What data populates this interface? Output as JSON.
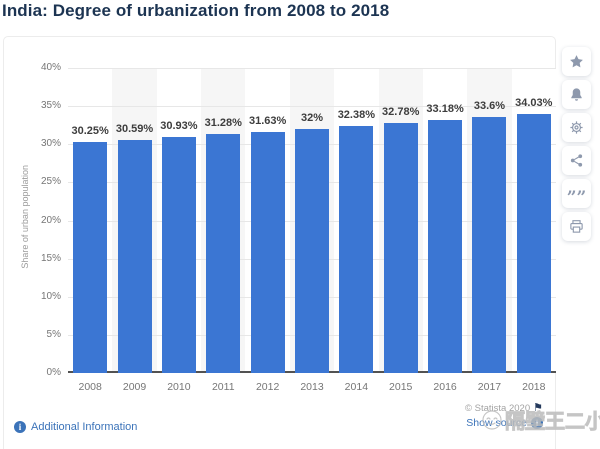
{
  "header": {
    "title": "India: Degree of urbanization from 2008 to 2018"
  },
  "chart_data": {
    "type": "bar",
    "title": "India: Degree of urbanization from 2008 to 2018",
    "categories": [
      "2008",
      "2009",
      "2010",
      "2011",
      "2012",
      "2013",
      "2014",
      "2015",
      "2016",
      "2017",
      "2018"
    ],
    "values": [
      30.25,
      30.59,
      30.93,
      31.28,
      31.63,
      32,
      32.38,
      32.78,
      33.18,
      33.6,
      34.03
    ],
    "value_labels": [
      "30.25%",
      "30.59%",
      "30.93%",
      "31.28%",
      "31.63%",
      "32%",
      "32.38%",
      "32.78%",
      "33.18%",
      "33.6%",
      "34.03%"
    ],
    "xlabel": "",
    "ylabel": "Share of urban population",
    "ylim": [
      0,
      40
    ],
    "ytick_step": 5,
    "ytick_labels": [
      "0%",
      "5%",
      "10%",
      "15%",
      "20%",
      "25%",
      "30%",
      "35%",
      "40%"
    ],
    "grid": true,
    "legend": false,
    "bar_color": "#3b76d3",
    "band_color": "#f6f6f6"
  },
  "sidebar": {
    "buttons": [
      {
        "name": "favorite",
        "icon": "star-icon"
      },
      {
        "name": "notifications",
        "icon": "bell-icon"
      },
      {
        "name": "settings",
        "icon": "gear-icon"
      },
      {
        "name": "share",
        "icon": "share-icon"
      },
      {
        "name": "cite",
        "icon": "quote-icon"
      },
      {
        "name": "print",
        "icon": "print-icon"
      }
    ],
    "quote_glyph": "”"
  },
  "footer": {
    "additional_info_label": "Additional Information",
    "info_icon_glyph": "i",
    "copyright": "© Statista 2020",
    "flag_glyph": "⚑",
    "show_source_label": "Show source"
  },
  "watermark": {
    "text": "隔壁王二小"
  },
  "colors": {
    "accent_blue": "#3b76d3",
    "link_blue": "#3b73b9",
    "title_navy": "#1c3452"
  }
}
